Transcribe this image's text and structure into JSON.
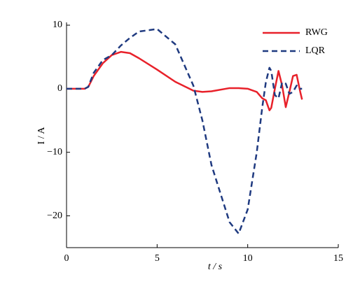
{
  "chart_data": {
    "type": "line",
    "xlabel": "t / s",
    "ylabel": "I / A",
    "x": [
      0,
      1,
      1.2,
      1.5,
      2,
      2.5,
      3,
      3.5,
      4,
      5,
      6,
      7,
      7.5,
      8,
      9,
      9.5,
      10,
      10.5,
      10.8,
      11,
      11.2,
      11.3,
      11.5,
      11.7,
      11.9,
      12.1,
      12.3,
      12.5,
      12.7,
      12.9,
      13
    ],
    "series": [
      {
        "name": "RWG",
        "color": "#e8212a",
        "dash": false,
        "values": [
          0,
          0,
          0.3,
          2,
          4,
          5.3,
          5.8,
          5.6,
          4.8,
          3,
          1.1,
          -0.3,
          -0.5,
          -0.4,
          0.1,
          0.1,
          0,
          -0.5,
          -1.5,
          -1.8,
          -3.4,
          -3,
          0,
          2.8,
          0.5,
          -2.9,
          -0.5,
          2,
          2.2,
          -0.5,
          -1.7
        ]
      },
      {
        "name": "LQR",
        "color": "#1f3a80",
        "dash": true,
        "values": [
          0,
          0,
          0.3,
          2.5,
          4.5,
          5.3,
          6.8,
          8,
          9,
          9.4,
          7,
          0.5,
          -5,
          -12,
          -21,
          -22.8,
          -19,
          -10,
          -3,
          1,
          3.3,
          2.8,
          -1,
          -1.5,
          1,
          0.8,
          -0.8,
          -0.5,
          0.5,
          0,
          0
        ]
      }
    ],
    "xlim": [
      0,
      15
    ],
    "xticks": [
      0,
      5,
      10,
      15
    ],
    "ylim": [
      -25,
      10
    ],
    "yticks": [
      {
        "value": -20,
        "label": "−20"
      },
      {
        "value": -10,
        "label": "−10"
      },
      0,
      10
    ],
    "legend": "upper right"
  }
}
